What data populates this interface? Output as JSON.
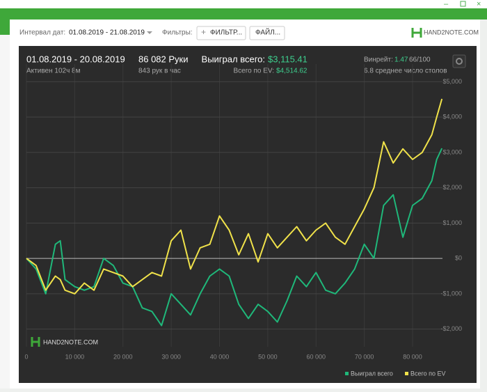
{
  "toolbar": {
    "date_label": "Интервал дат:",
    "date_range": "01.08.2019 - 21.08.2019",
    "filters_label": "Фильтры:",
    "filter_button": "ФИЛЬТР...",
    "file_button": "ФАЙЛ...",
    "logo": "HAND2NOTE.COM"
  },
  "stats": {
    "period": "01.08.2019 - 20.08.2019",
    "active": "Активен 102ч 8м",
    "hands": "86 082 Руки",
    "hands_per_hour": "843 рук в час",
    "won_label": "Выиграл всего:",
    "won_value": "$3,115.41",
    "ev_label": "Всего по EV:",
    "ev_value": "$4,514.62",
    "winrate_label": "Винрейт:",
    "winrate_value": "1.47",
    "winrate_unit": "66/100",
    "tables": "6.8 среднее число столов"
  },
  "chart_data": {
    "type": "line",
    "watermark": "HAND2NOTE.COM",
    "x": [
      0,
      2000,
      4000,
      6000,
      7000,
      8000,
      10000,
      12000,
      14000,
      16000,
      18000,
      20000,
      22000,
      24000,
      26000,
      28000,
      30000,
      32000,
      34000,
      36000,
      38000,
      40000,
      42000,
      44000,
      46000,
      48000,
      50000,
      52000,
      54000,
      56000,
      58000,
      60000,
      62000,
      64000,
      66000,
      68000,
      70000,
      72000,
      74000,
      76000,
      78000,
      80000,
      82000,
      84000,
      85000,
      86082
    ],
    "series": [
      {
        "name": "Выиграл всего",
        "color": "#1fb87a",
        "values": [
          0,
          -300,
          -1000,
          400,
          500,
          -600,
          -800,
          -900,
          -800,
          0,
          -200,
          -700,
          -800,
          -1400,
          -1500,
          -1900,
          -1000,
          -1300,
          -1600,
          -1000,
          -500,
          -300,
          -500,
          -1300,
          -1700,
          -1300,
          -1500,
          -1800,
          -1200,
          -500,
          -800,
          -400,
          -900,
          -1000,
          -700,
          -300,
          400,
          0,
          1500,
          1800,
          600,
          1500,
          1700,
          2200,
          2800,
          3115.41
        ]
      },
      {
        "name": "Всего по EV",
        "color": "#f0e24a",
        "values": [
          0,
          -200,
          -900,
          -500,
          -600,
          -900,
          -1000,
          -700,
          -900,
          -300,
          -400,
          -500,
          -800,
          -600,
          -400,
          -500,
          500,
          800,
          -300,
          300,
          400,
          1200,
          800,
          100,
          700,
          -100,
          700,
          300,
          600,
          900,
          500,
          800,
          1000,
          600,
          400,
          900,
          1400,
          2000,
          3300,
          2700,
          3100,
          2800,
          3000,
          3500,
          4000,
          4514.62
        ]
      }
    ],
    "xlim": [
      0,
      86200
    ],
    "ylim": [
      -2500,
      5500
    ],
    "xticks": [
      0,
      {
        "value": 10000,
        "label": "10 000"
      },
      {
        "value": 20000,
        "label": "20 000"
      },
      {
        "value": 30000,
        "label": "30 000"
      },
      {
        "value": 40000,
        "label": "40 000"
      },
      {
        "value": 50000,
        "label": "50 000"
      },
      {
        "value": 60000,
        "label": "60 000"
      },
      {
        "value": 70000,
        "label": "70 000"
      },
      {
        "value": 80000,
        "label": "80 000"
      }
    ],
    "yticks": [
      {
        "value": -2000,
        "label": "-$2,000"
      },
      {
        "value": -1000,
        "label": "-$1,000"
      },
      {
        "value": 0,
        "label": "$0"
      },
      {
        "value": 1000,
        "label": "$1,000"
      },
      {
        "value": 2000,
        "label": "$2,000"
      },
      {
        "value": 3000,
        "label": "$3,000"
      },
      {
        "value": 4000,
        "label": "$4,000"
      },
      {
        "value": 5000,
        "label": "$5,000"
      }
    ],
    "grid": true
  }
}
